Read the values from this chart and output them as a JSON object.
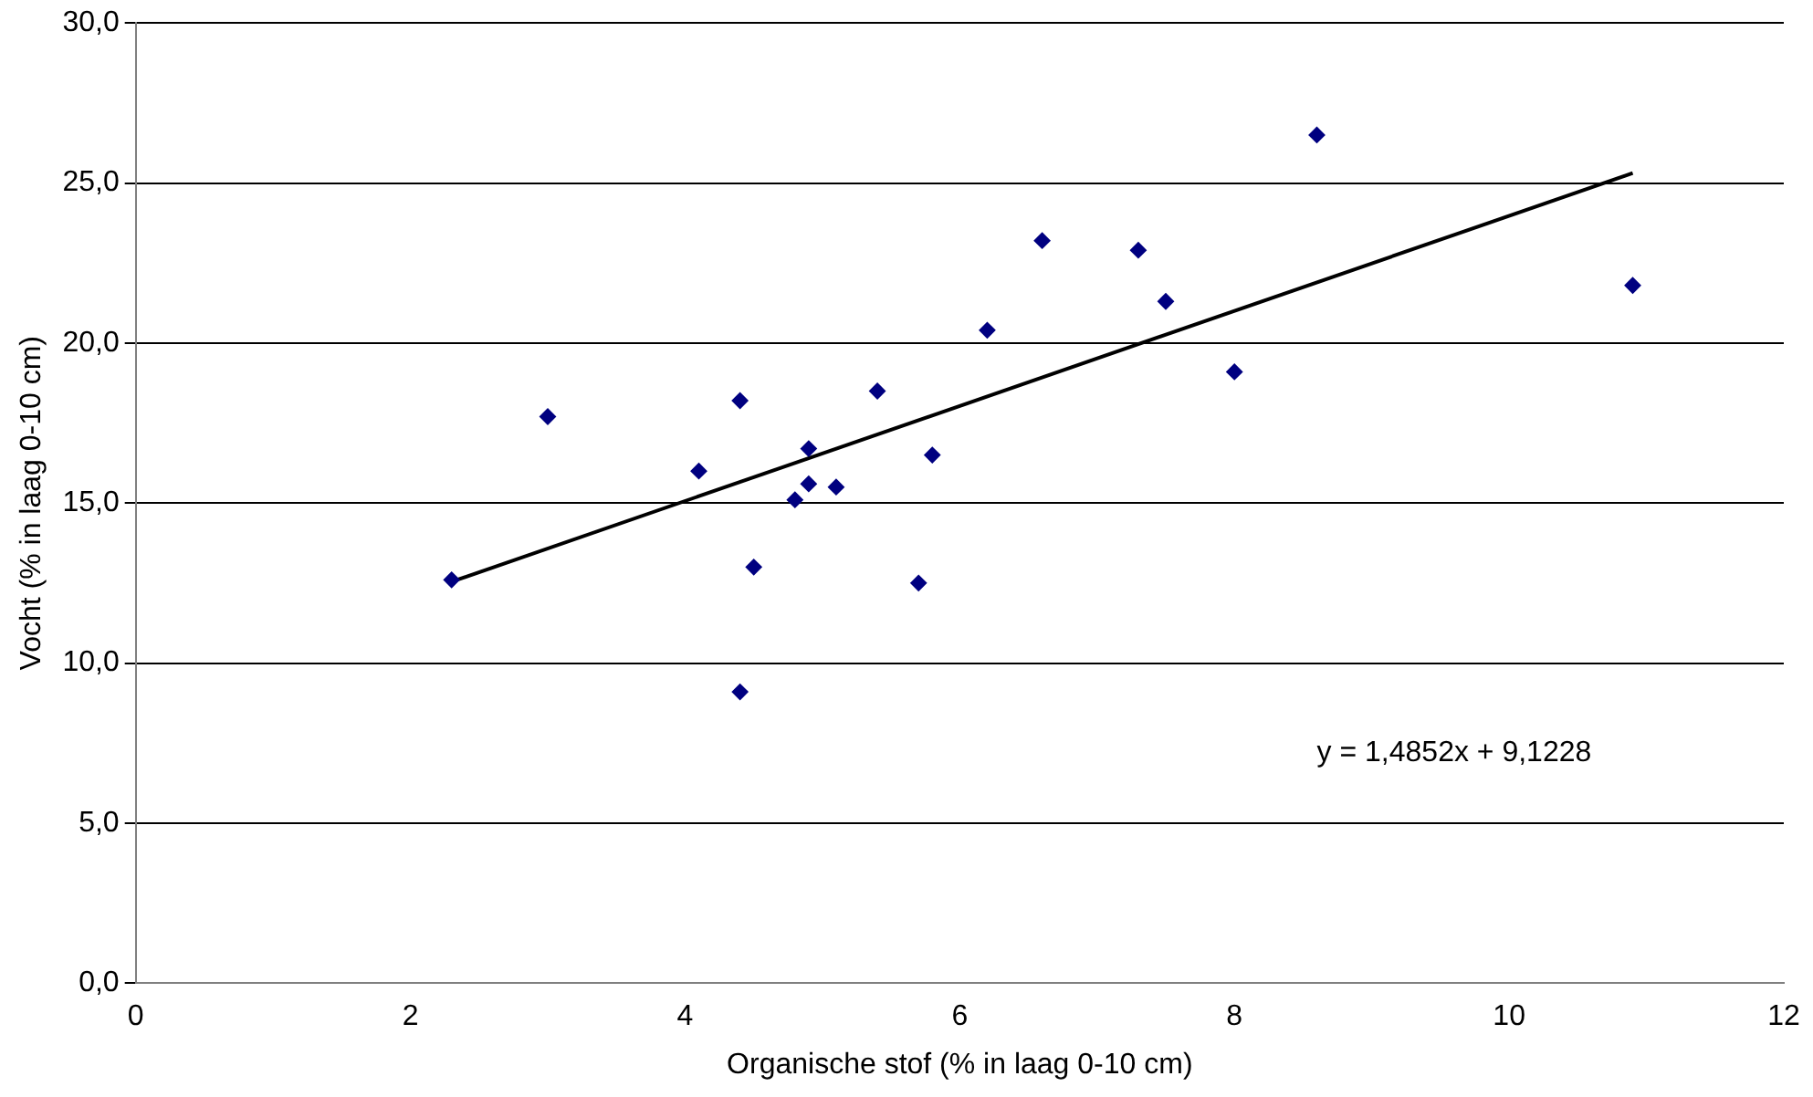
{
  "chart_data": {
    "type": "scatter",
    "xlabel": "Organische stof (% in laag 0-10 cm)",
    "ylabel": "Vocht (% in laag 0-10 cm)",
    "xlim": [
      0,
      12
    ],
    "xticks": [
      0,
      2,
      4,
      6,
      8,
      10,
      12
    ],
    "ylim": [
      0,
      30
    ],
    "yticks": [
      {
        "value": 0,
        "label": "0,0"
      },
      {
        "value": 5,
        "label": "5,0"
      },
      {
        "value": 10,
        "label": "10,0"
      },
      {
        "value": 15,
        "label": "15,0"
      },
      {
        "value": 20,
        "label": "20,0"
      },
      {
        "value": 25,
        "label": "25,0"
      },
      {
        "value": 30,
        "label": "30,0"
      }
    ],
    "grid": "y",
    "legend": false,
    "series": [
      {
        "color": "#000080",
        "marker": "diamond",
        "x": [
          2.3,
          3.0,
          4.1,
          4.4,
          4.4,
          4.5,
          4.8,
          4.9,
          4.9,
          5.1,
          5.4,
          5.7,
          5.8,
          6.2,
          6.6,
          7.3,
          7.5,
          8.0,
          8.6,
          10.9
        ],
        "values": [
          12.6,
          17.7,
          16.0,
          18.2,
          9.1,
          13.0,
          15.1,
          16.7,
          15.6,
          15.5,
          18.5,
          12.5,
          16.5,
          20.4,
          23.2,
          22.9,
          21.3,
          19.1,
          26.5,
          21.8
        ]
      },
      {
        "type": "line",
        "color": "#000000",
        "marker": "none",
        "line_style": "solid",
        "x": [
          2.3,
          10.9
        ],
        "values": [
          12.54,
          25.31
        ]
      }
    ],
    "annotations": [
      "y = 1,4852x + 9,1228"
    ]
  }
}
